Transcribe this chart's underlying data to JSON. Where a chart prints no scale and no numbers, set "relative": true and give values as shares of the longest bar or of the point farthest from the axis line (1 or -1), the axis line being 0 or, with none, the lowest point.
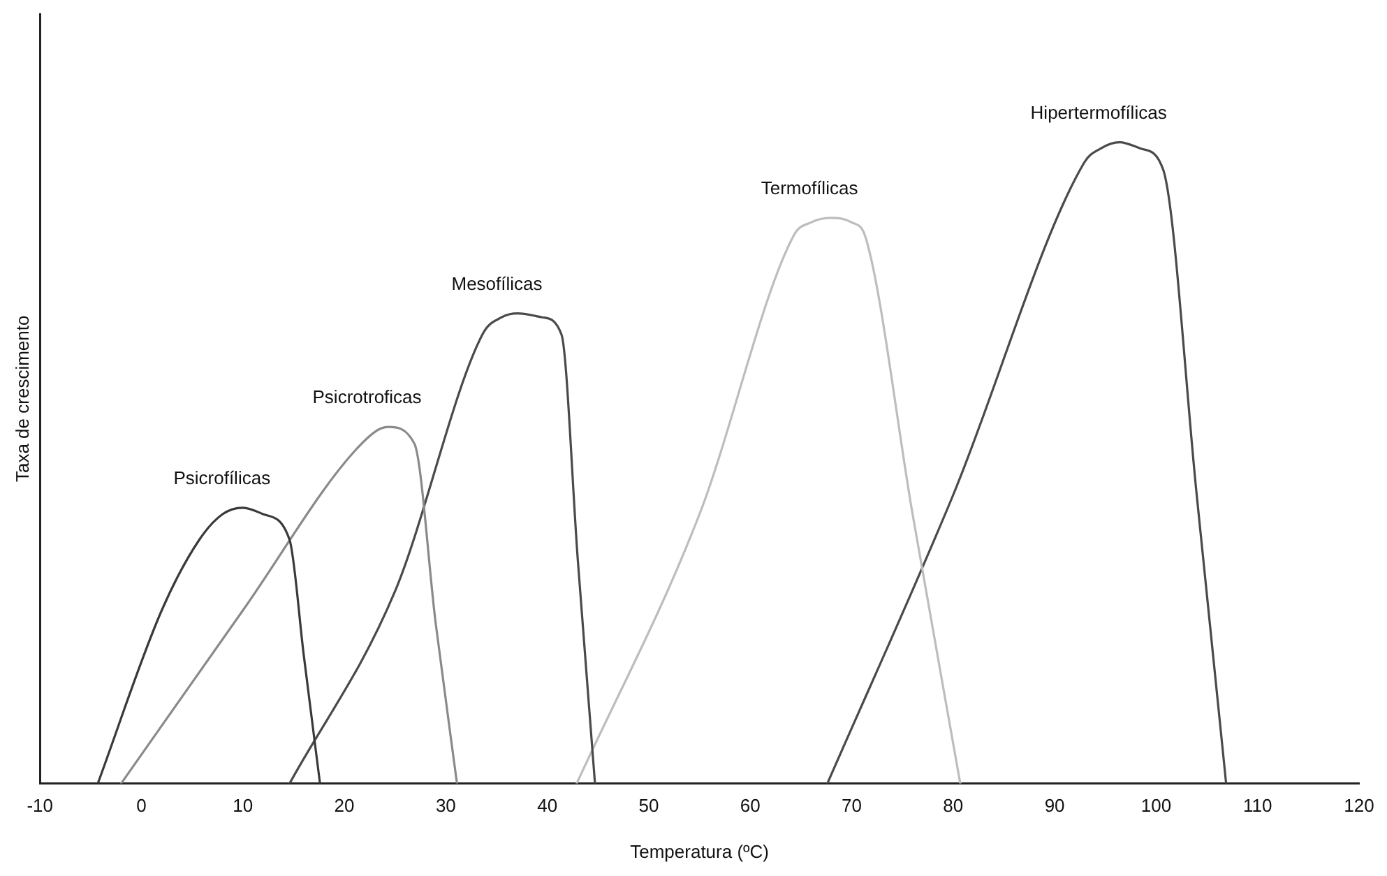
{
  "chart_data": {
    "type": "line",
    "relative": true,
    "xlabel": "Temperatura (ºC)",
    "ylabel": "Taxa de crescimento",
    "xlim": [
      -10,
      120
    ],
    "xticks": [
      -10,
      0,
      10,
      20,
      30,
      40,
      50,
      60,
      70,
      80,
      90,
      100,
      110,
      120
    ],
    "tick_labels": "x",
    "grid": false,
    "legend": false,
    "marker": "none",
    "line_style": "solid",
    "series": [
      {
        "name": "Psicrofílicas",
        "color": "#3a3a3a",
        "x": [
          -4.3,
          2,
          5.7,
          8,
          10,
          12,
          14.6,
          16,
          17.6
        ],
        "values": [
          0,
          0.27,
          0.38,
          0.42,
          0.43,
          0.42,
          0.38,
          0.2,
          0
        ]
      },
      {
        "name": "Psicrotroficas",
        "color": "#8a8a8a",
        "x": [
          -2,
          10,
          21.7,
          24.3,
          26.9,
          29,
          31.1
        ],
        "values": [
          0,
          0.27,
          0.53,
          0.556,
          0.53,
          0.25,
          0
        ]
      },
      {
        "name": "Mesofílicas",
        "color": "#4a4a4a",
        "x": [
          14.6,
          25,
          33.6,
          35.5,
          37.1,
          39.5,
          41.4,
          43,
          44.7
        ],
        "values": [
          0,
          0.3,
          0.7,
          0.727,
          0.733,
          0.727,
          0.7,
          0.35,
          0
        ]
      },
      {
        "name": "Termofílicas",
        "color": "#bdbdbd",
        "x": [
          42.9,
          55,
          64.3,
          66,
          67.9,
          70,
          71.4,
          76,
          80.7
        ],
        "values": [
          0,
          0.42,
          0.855,
          0.875,
          0.882,
          0.875,
          0.85,
          0.42,
          0
        ]
      },
      {
        "name": "Hipertermofílicas",
        "color": "#4a4a4a",
        "x": [
          67.6,
          80,
          92.9,
          94.5,
          96.4,
          98.5,
          100.7,
          104,
          106.9
        ],
        "values": [
          0,
          0.45,
          0.968,
          0.99,
          1,
          0.99,
          0.957,
          0.45,
          0
        ]
      }
    ]
  }
}
